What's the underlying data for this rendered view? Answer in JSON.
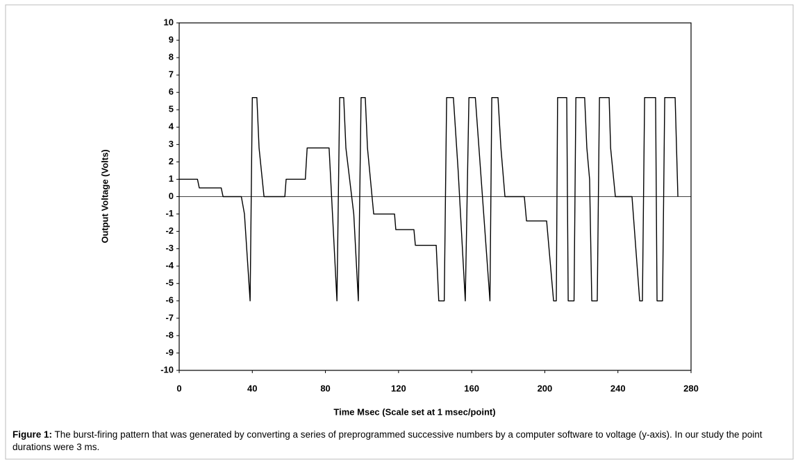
{
  "chart_data": {
    "type": "line",
    "x_label": "Time Msec (Scale set at 1 msec/point)",
    "y_label": "Output Voltage (Volts)",
    "caption": {
      "label": "Figure 1:",
      "text": "The burst-firing pattern that was generated by converting a series of preprogrammed successive numbers by a computer software to voltage (y-axis). In our study the point durations were 3 ms."
    },
    "color": "#000000",
    "x": [
      0,
      10,
      11,
      23,
      24,
      34,
      35.7,
      38.8,
      40,
      42.5,
      43.7,
      46.4,
      57.8,
      58.5,
      69,
      70,
      82,
      86.3,
      87.8,
      90,
      91.2,
      95.5,
      98,
      99.5,
      101.8,
      103,
      106.4,
      117.8,
      118.5,
      128.4,
      129.2,
      140.6,
      142,
      145,
      146.3,
      150,
      152.6,
      156.5,
      158.5,
      162,
      170,
      171,
      174.4,
      176,
      178.2,
      188.8,
      190,
      201,
      204.8,
      206.3,
      207,
      212,
      212.8,
      216,
      217,
      221.8,
      223,
      224.5,
      225.7,
      228.7,
      229.9,
      235.2,
      236,
      238.6,
      247.7,
      251.9,
      253.4,
      254.6,
      260.6,
      261.4,
      264.4,
      265.6,
      271.3,
      272.8
    ],
    "values": [
      1,
      1,
      0.5,
      0.5,
      0,
      0,
      -1,
      -6,
      5.7,
      5.7,
      2.8,
      0,
      0,
      1,
      1,
      2.8,
      2.8,
      -6,
      5.7,
      5.7,
      2.8,
      -1,
      -6,
      5.7,
      5.7,
      2.8,
      -1,
      -1,
      -1.9,
      -1.9,
      -2.8,
      -2.8,
      -6,
      -6,
      5.7,
      5.7,
      1.5,
      -6,
      5.7,
      5.7,
      -6,
      5.7,
      5.7,
      2.8,
      0,
      0,
      -1.4,
      -1.4,
      -6,
      -6,
      5.7,
      5.7,
      -6,
      -6,
      5.7,
      5.7,
      2.8,
      1,
      -6,
      -6,
      5.7,
      5.7,
      2.8,
      0,
      0,
      -6,
      -6,
      5.7,
      5.7,
      -6,
      -6,
      5.7,
      5.7,
      0
    ],
    "xlim": [
      0,
      280
    ],
    "xticks": [
      0,
      40,
      80,
      120,
      160,
      200,
      240,
      280
    ],
    "ylim": [
      -10,
      10
    ],
    "yticks": [
      -10,
      -9,
      -8,
      -7,
      -6,
      -5,
      -4,
      -3,
      -2,
      -1,
      0,
      1,
      2,
      3,
      4,
      5,
      6,
      7,
      8,
      9,
      10
    ]
  }
}
